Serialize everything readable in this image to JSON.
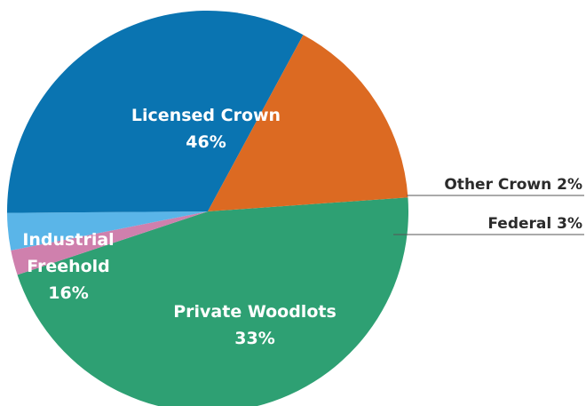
{
  "chart_data": {
    "type": "pie",
    "title": "",
    "slices": [
      {
        "name": "Licensed Crown",
        "value": 46,
        "label": "46%",
        "color": "#2ea073"
      },
      {
        "name": "Other Crown",
        "value": 2,
        "label": "2%",
        "color": "#cf80ad"
      },
      {
        "name": "Federal",
        "value": 3,
        "label": "3%",
        "color": "#5ab5e8"
      },
      {
        "name": "Private Woodlots",
        "value": 33,
        "label": "33%",
        "color": "#0a74b1"
      },
      {
        "name": "Industrial Freehold",
        "value": 16,
        "label": "16%",
        "color": "#dc6a22"
      }
    ],
    "label_text": {
      "licensed_name": "Licensed Crown",
      "licensed_pct": "46%",
      "other_crown": "Other Crown 2%",
      "federal": "Federal 3%",
      "private_name": "Private Woodlots",
      "private_pct": "33%",
      "industrial_line1": "Industrial",
      "industrial_line2": "Freehold",
      "industrial_pct": "16%"
    },
    "legend": "none",
    "start_angle_deg": -4,
    "direction": "clockwise"
  }
}
